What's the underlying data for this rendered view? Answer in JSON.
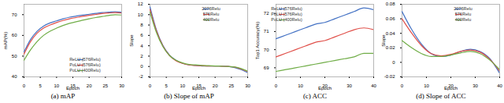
{
  "chart_data": [
    {
      "type": "line",
      "title": "(a) mAP",
      "x_label": "Epoch",
      "y_label": "mAP(%)",
      "x": [
        0,
        2,
        4,
        6,
        8,
        10,
        12,
        14,
        16,
        18,
        20,
        22,
        24,
        26,
        28,
        30
      ],
      "xlim": [
        0,
        30
      ],
      "xticks": [
        0,
        5,
        10,
        15,
        20,
        25,
        30
      ],
      "ylim": [
        40,
        75
      ],
      "yticks": [
        40,
        50,
        60,
        70
      ],
      "legend": "bottom-right",
      "series": [
        {
          "name": "ReLU (576Relu)",
          "color": "#4472c4",
          "values": [
            52,
            58,
            62,
            64.5,
            66,
            67,
            68,
            68.8,
            69.3,
            69.8,
            70.2,
            70.6,
            71,
            71.2,
            71.4,
            71.2
          ]
        },
        {
          "name": "PoLU (576Relu)",
          "color": "#e0504a",
          "values": [
            51,
            57,
            61,
            63.5,
            65,
            66.2,
            67.2,
            68,
            68.6,
            69.2,
            69.7,
            70.1,
            70.5,
            70.8,
            71,
            70.8
          ]
        },
        {
          "name": "PoLU (400Relu)",
          "color": "#70ad47",
          "values": [
            48,
            53,
            57,
            60,
            62,
            63.5,
            64.8,
            65.8,
            66.6,
            67.3,
            68,
            68.6,
            69.1,
            69.6,
            70,
            69.8
          ]
        }
      ]
    },
    {
      "type": "line",
      "title": "(b) Slope of mAP",
      "x_label": "Epoch",
      "y_label": "Slope",
      "x": [
        0,
        2,
        4,
        6,
        8,
        10,
        12,
        14,
        16,
        18,
        20,
        22,
        24,
        26,
        28,
        30
      ],
      "xlim": [
        0,
        30
      ],
      "xticks": [
        0,
        5,
        10,
        15,
        20,
        25,
        30
      ],
      "ylim": [
        -2,
        12
      ],
      "yticks": [
        -2,
        0,
        2,
        4,
        6,
        8,
        10,
        12
      ],
      "legend": "top-right",
      "series": [
        {
          "name": "2076Relu",
          "color": "#4472c4",
          "values": [
            11.5,
            7,
            4,
            2.2,
            1.2,
            0.6,
            0.3,
            0.2,
            0.1,
            0.1,
            0.1,
            0.1,
            0,
            -0.2,
            -0.6,
            -1.2
          ]
        },
        {
          "name": "576Relu",
          "color": "#e0504a",
          "values": [
            11,
            6.8,
            3.9,
            2.1,
            1.1,
            0.6,
            0.3,
            0.2,
            0.15,
            0.1,
            0.1,
            0.05,
            0,
            -0.1,
            -0.5,
            -1
          ]
        },
        {
          "name": "400Relu",
          "color": "#70ad47",
          "values": [
            10.5,
            6.5,
            3.8,
            2.1,
            1.2,
            0.7,
            0.4,
            0.3,
            0.2,
            0.15,
            0.1,
            0.05,
            0,
            -0.1,
            -0.4,
            -0.9
          ]
        }
      ]
    },
    {
      "type": "line",
      "title": "(c) ACC",
      "x_label": "Epoch",
      "y_label": "Top1 Accuracy(%)",
      "x": [
        0,
        4,
        8,
        12,
        16,
        20,
        24,
        28,
        32,
        36,
        40
      ],
      "xlim": [
        0,
        40
      ],
      "xticks": [
        0,
        10,
        20,
        30,
        40
      ],
      "ylim": [
        68.5,
        72.5
      ],
      "yticks": [
        69,
        70,
        71,
        72
      ],
      "legend": "top-left",
      "series": [
        {
          "name": "ReLU (576Relu)",
          "color": "#4472c4",
          "values": [
            70.6,
            70.8,
            71.0,
            71.2,
            71.4,
            71.5,
            71.7,
            71.9,
            72.1,
            72.3,
            72.2
          ]
        },
        {
          "name": "PoLU (576Relu)",
          "color": "#e0504a",
          "values": [
            69.6,
            69.8,
            70.0,
            70.2,
            70.4,
            70.5,
            70.7,
            70.9,
            71.1,
            71.2,
            71.1
          ]
        },
        {
          "name": "PoLU (400Relu)",
          "color": "#70ad47",
          "values": [
            68.8,
            68.9,
            69.0,
            69.1,
            69.2,
            69.3,
            69.4,
            69.5,
            69.6,
            69.8,
            69.8
          ]
        }
      ]
    },
    {
      "type": "line",
      "title": "(d) Slope of ACC",
      "x_label": "Epoch",
      "y_label": "Slope",
      "x": [
        0,
        4,
        8,
        12,
        16,
        20,
        24,
        28,
        32,
        36,
        40
      ],
      "xlim": [
        0,
        40
      ],
      "xticks": [
        0,
        10,
        20,
        30,
        40
      ],
      "ylim": [
        -0.02,
        0.08
      ],
      "yticks": [
        -0.02,
        0,
        0.02,
        0.04,
        0.06,
        0.08
      ],
      "legend": "top-right",
      "series": [
        {
          "name": "2076Relu",
          "color": "#4472c4",
          "values": [
            0.07,
            0.045,
            0.025,
            0.012,
            0.008,
            0.01,
            0.015,
            0.018,
            0.015,
            0.005,
            -0.015
          ]
        },
        {
          "name": "576Relu",
          "color": "#e0504a",
          "values": [
            0.06,
            0.04,
            0.023,
            0.012,
            0.009,
            0.011,
            0.015,
            0.017,
            0.014,
            0.004,
            -0.012
          ]
        },
        {
          "name": "400Relu",
          "color": "#70ad47",
          "values": [
            0.03,
            0.02,
            0.012,
            0.008,
            0.008,
            0.01,
            0.013,
            0.015,
            0.012,
            0.003,
            -0.01
          ]
        }
      ]
    }
  ]
}
